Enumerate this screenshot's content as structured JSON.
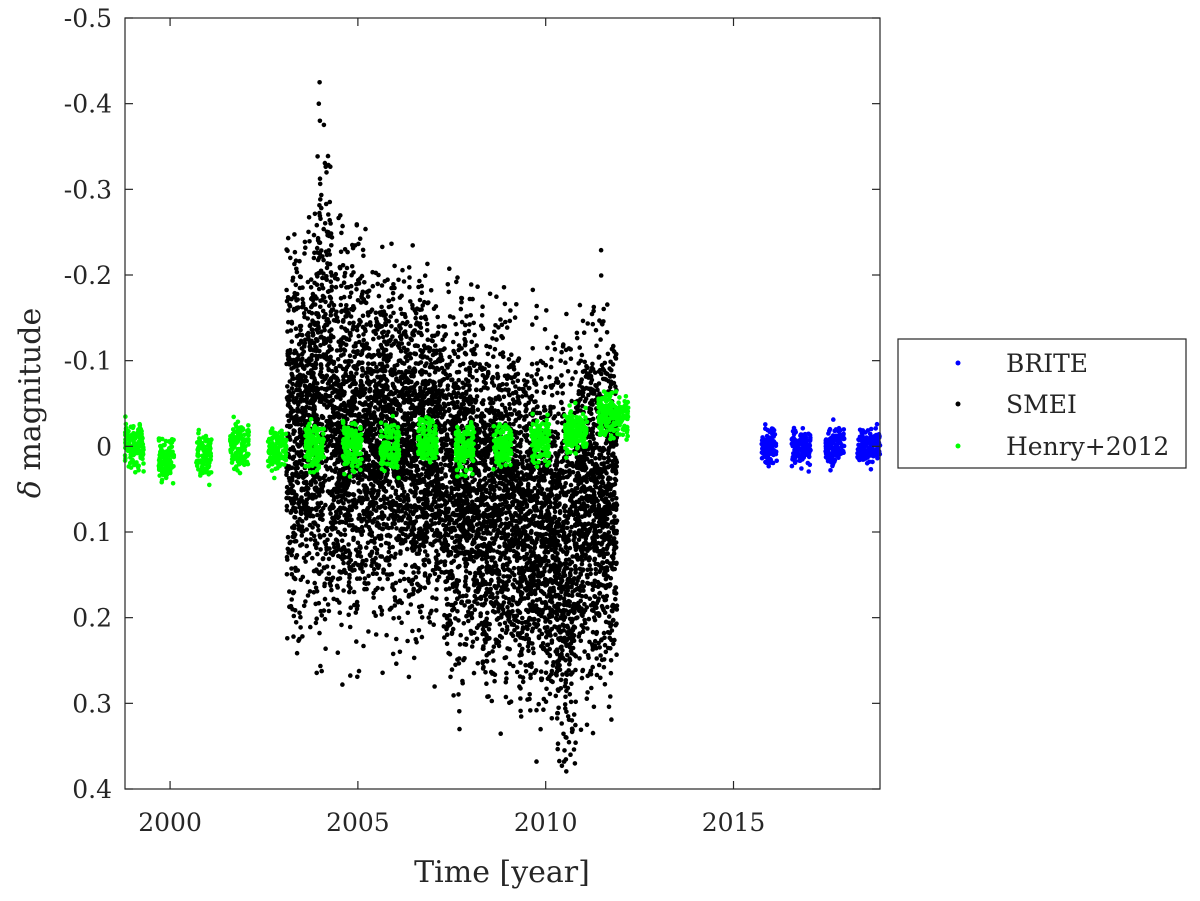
{
  "chart_data": {
    "type": "scatter",
    "title": "",
    "xlabel": "Time [year]",
    "ylabel_symbol": "δ",
    "ylabel_text": " magnitude",
    "xlim": [
      1998.8,
      2018.9
    ],
    "ylim": [
      0.4,
      -0.5
    ],
    "y_reversed": true,
    "grid": false,
    "legend_placement": "outside-right",
    "xticks": [
      2000,
      2005,
      2010,
      2015
    ],
    "xtick_labels": [
      "2000",
      "2005",
      "2010",
      "2015"
    ],
    "yticks": [
      -0.5,
      -0.4,
      -0.3,
      -0.2,
      -0.1,
      0,
      0.1,
      0.2,
      0.3,
      0.4
    ],
    "ytick_labels": [
      "-0.5",
      "-0.4",
      "-0.3",
      "-0.2",
      "-0.1",
      "0",
      "0.1",
      "0.2",
      "0.3",
      "0.4"
    ],
    "series": [
      {
        "name": "BRITE",
        "color": "#0000ff",
        "segments": [
          {
            "x_start": 2015.75,
            "x_end": 2016.15,
            "center": 0.0,
            "spread": 0.012
          },
          {
            "x_start": 2016.55,
            "x_end": 2017.05,
            "center": 0.0,
            "spread": 0.01
          },
          {
            "x_start": 2017.45,
            "x_end": 2017.95,
            "center": 0.0,
            "spread": 0.01
          },
          {
            "x_start": 2018.3,
            "x_end": 2018.9,
            "center": 0.0,
            "spread": 0.01
          }
        ]
      },
      {
        "name": "SMEI",
        "color": "#000000",
        "segments": [
          {
            "x_start": 2003.1,
            "x_end": 2003.9,
            "center": -0.02,
            "spread": 0.1
          },
          {
            "x_start": 2003.9,
            "x_end": 2004.3,
            "center": -0.05,
            "spread": 0.14
          },
          {
            "x_start": 2004.3,
            "x_end": 2005.3,
            "center": -0.01,
            "spread": 0.1
          },
          {
            "x_start": 2005.3,
            "x_end": 2006.3,
            "center": 0.0,
            "spread": 0.09
          },
          {
            "x_start": 2006.3,
            "x_end": 2007.3,
            "center": 0.01,
            "spread": 0.09
          },
          {
            "x_start": 2007.3,
            "x_end": 2008.3,
            "center": 0.05,
            "spread": 0.1
          },
          {
            "x_start": 2008.3,
            "x_end": 2009.3,
            "center": 0.07,
            "spread": 0.1
          },
          {
            "x_start": 2009.3,
            "x_end": 2010.3,
            "center": 0.1,
            "spread": 0.1
          },
          {
            "x_start": 2010.3,
            "x_end": 2010.8,
            "center": 0.13,
            "spread": 0.11
          },
          {
            "x_start": 2010.8,
            "x_end": 2011.9,
            "center": 0.07,
            "spread": 0.1
          }
        ],
        "peaks": [
          {
            "x": 2003.98,
            "y": -0.425
          },
          {
            "x": 2003.96,
            "y": -0.4
          },
          {
            "x": 2003.99,
            "y": -0.38
          },
          {
            "x": 2004.97,
            "y": -0.258
          },
          {
            "x": 2004.85,
            "y": -0.235
          },
          {
            "x": 2005.55,
            "y": -0.2
          },
          {
            "x": 2007.62,
            "y": -0.192
          },
          {
            "x": 2006.7,
            "y": -0.187
          },
          {
            "x": 2003.2,
            "y": -0.22
          },
          {
            "x": 2011.8,
            "y": -0.117
          },
          {
            "x": 2009.75,
            "y": -0.15
          },
          {
            "x": 2003.3,
            "y": 0.17
          },
          {
            "x": 2004.9,
            "y": 0.17
          },
          {
            "x": 2006.5,
            "y": 0.247
          },
          {
            "x": 2007.6,
            "y": 0.255
          },
          {
            "x": 2008.6,
            "y": 0.265
          },
          {
            "x": 2009.4,
            "y": 0.275
          },
          {
            "x": 2009.95,
            "y": 0.295
          },
          {
            "x": 2010.5,
            "y": 0.355
          },
          {
            "x": 2010.55,
            "y": 0.34
          },
          {
            "x": 2011.1,
            "y": 0.325
          },
          {
            "x": 2011.6,
            "y": 0.24
          }
        ]
      },
      {
        "name": "Henry+2012",
        "color": "#00ff00",
        "segments": [
          {
            "x_start": 1998.8,
            "x_end": 1999.3,
            "center": 0.0,
            "spread": 0.013
          },
          {
            "x_start": 1999.7,
            "x_end": 2000.1,
            "center": 0.015,
            "spread": 0.013
          },
          {
            "x_start": 2000.7,
            "x_end": 2001.1,
            "center": 0.01,
            "spread": 0.013
          },
          {
            "x_start": 2001.6,
            "x_end": 2002.1,
            "center": 0.0,
            "spread": 0.013
          },
          {
            "x_start": 2002.6,
            "x_end": 2003.1,
            "center": 0.005,
            "spread": 0.013
          },
          {
            "x_start": 2003.6,
            "x_end": 2004.1,
            "center": 0.0,
            "spread": 0.013
          },
          {
            "x_start": 2004.6,
            "x_end": 2005.1,
            "center": 0.0,
            "spread": 0.013
          },
          {
            "x_start": 2005.6,
            "x_end": 2006.1,
            "center": 0.0,
            "spread": 0.013
          },
          {
            "x_start": 2006.6,
            "x_end": 2007.1,
            "center": -0.005,
            "spread": 0.013
          },
          {
            "x_start": 2007.6,
            "x_end": 2008.1,
            "center": 0.0,
            "spread": 0.013
          },
          {
            "x_start": 2008.6,
            "x_end": 2009.1,
            "center": 0.0,
            "spread": 0.013
          },
          {
            "x_start": 2009.6,
            "x_end": 2010.1,
            "center": -0.005,
            "spread": 0.013
          },
          {
            "x_start": 2010.5,
            "x_end": 2011.1,
            "center": -0.015,
            "spread": 0.013
          },
          {
            "x_start": 2011.4,
            "x_end": 2012.2,
            "center": -0.035,
            "spread": 0.013
          }
        ]
      }
    ]
  }
}
